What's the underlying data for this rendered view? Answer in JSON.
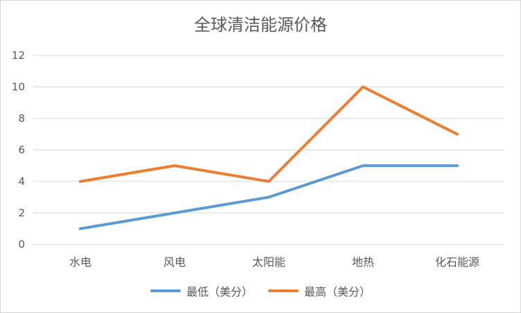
{
  "chart_data": {
    "type": "line",
    "title": "全球清洁能源价格",
    "categories": [
      "水电",
      "风电",
      "太阳能",
      "地热",
      "化石能源"
    ],
    "series": [
      {
        "name": "最低（美分）",
        "values": [
          1,
          2,
          3,
          5,
          5
        ],
        "color": "#5b9bd5"
      },
      {
        "name": "最高（美分）",
        "values": [
          4,
          5,
          4,
          10,
          7
        ],
        "color": "#ed7d31"
      }
    ],
    "ylim": [
      0,
      12
    ],
    "yticks": [
      0,
      2,
      4,
      6,
      8,
      10,
      12
    ],
    "grid": true,
    "legend": "bottom"
  }
}
